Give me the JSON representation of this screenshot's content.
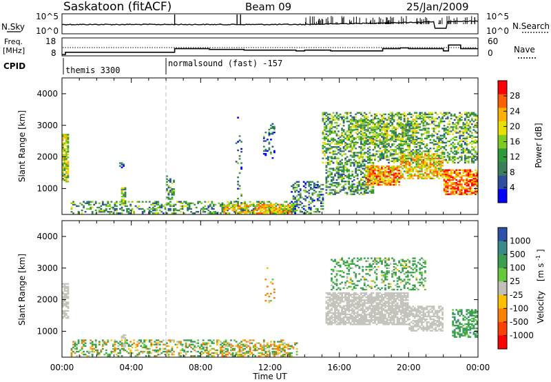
{
  "header": {
    "station": "Saskatoon (fitACF)",
    "beam": "Beam 09",
    "date": "25/Jan/2009"
  },
  "chart_data": [
    {
      "type": "line",
      "name": "noise-strip",
      "left_label": "N.Sky",
      "right_label": "N.Search",
      "left_ticks": [
        "10^5",
        "10^0"
      ],
      "right_ticks": [
        "10^5",
        "10^0"
      ],
      "y_scale": "log"
    },
    {
      "type": "line",
      "name": "frequency-strip",
      "left_label_top": "Freq.",
      "left_label_bottom": "[MHz]",
      "right_label": "Nave",
      "left_ticks": [
        "18",
        "8"
      ],
      "right_ticks": [
        "60",
        "0"
      ],
      "freq_steps_hours": [
        [
          0,
          0
        ],
        [
          0.2,
          9.5
        ],
        [
          6.5,
          12
        ],
        [
          8.5,
          11.5
        ],
        [
          10.5,
          11
        ],
        [
          13.5,
          10.5
        ],
        [
          14,
          11
        ],
        [
          15.5,
          10.5
        ],
        [
          18.5,
          12
        ],
        [
          19.5,
          12.5
        ],
        [
          20,
          12
        ],
        [
          22,
          10.5
        ],
        [
          22.3,
          14.5
        ],
        [
          23,
          12
        ],
        [
          24,
          12
        ]
      ]
    },
    {
      "type": "table",
      "name": "cpid-strip",
      "label": "CPID",
      "segments": [
        {
          "text": "themis 3300",
          "start_hour": 0
        },
        {
          "text": "normalsound (fast) -157",
          "start_hour": 6
        }
      ]
    },
    {
      "type": "heatmap",
      "name": "power-panel",
      "ylabel": "Slant Range [km]",
      "yticks": [
        "4000",
        "3000",
        "2000",
        "1000"
      ],
      "ylim": [
        180,
        4500
      ],
      "xlim_hours": [
        0,
        24
      ],
      "colorbar_label": "Power [dB]",
      "colorbar_ticks": [
        "28",
        "24",
        "20",
        "16",
        "12",
        "8",
        "4"
      ],
      "colorbar_colors": [
        "#ff0000",
        "#ff6000",
        "#ffb000",
        "#e8e000",
        "#7ecb20",
        "#2e9a3a",
        "#3c7e5a",
        "#2e4fa0",
        "#0000ff"
      ],
      "regions": [
        {
          "h0": 0.0,
          "h1": 0.4,
          "r0": 1200,
          "r1": 2700,
          "v": 16,
          "d": 0.8
        },
        {
          "h0": 3.4,
          "h1": 3.7,
          "r0": 500,
          "r1": 1000,
          "v": 14,
          "d": 0.7
        },
        {
          "h0": 3.3,
          "h1": 3.6,
          "r0": 1650,
          "r1": 1800,
          "v": 6,
          "d": 0.5
        },
        {
          "h0": 6.0,
          "h1": 6.4,
          "r0": 650,
          "r1": 1400,
          "v": 10,
          "d": 0.4
        },
        {
          "h0": 0.5,
          "h1": 13.5,
          "r0": 200,
          "r1": 600,
          "v": 10,
          "d": 0.35
        },
        {
          "h0": 9.3,
          "h1": 13.2,
          "r0": 200,
          "r1": 500,
          "v": 20,
          "d": 0.7
        },
        {
          "h0": 13.2,
          "h1": 15.0,
          "r0": 200,
          "r1": 1200,
          "v": 8,
          "d": 0.35
        },
        {
          "h0": 10.0,
          "h1": 10.3,
          "r0": 300,
          "r1": 3400,
          "v": 6,
          "d": 0.12
        },
        {
          "h0": 11.6,
          "h1": 12.2,
          "r0": 1900,
          "r1": 3100,
          "v": 6,
          "d": 0.2
        },
        {
          "h0": 15.0,
          "h1": 24.0,
          "r0": 1800,
          "r1": 3400,
          "v": 12,
          "d": 0.45
        },
        {
          "h0": 15.2,
          "h1": 18.0,
          "r0": 800,
          "r1": 1800,
          "v": 10,
          "d": 0.5
        },
        {
          "h0": 17.5,
          "h1": 19.5,
          "r0": 1100,
          "r1": 1700,
          "v": 24,
          "d": 0.75
        },
        {
          "h0": 19.5,
          "h1": 22.0,
          "r0": 1300,
          "r1": 2100,
          "v": 20,
          "d": 0.6
        },
        {
          "h0": 22.0,
          "h1": 24.0,
          "r0": 800,
          "r1": 1600,
          "v": 26,
          "d": 0.7
        },
        {
          "h0": 16.5,
          "h1": 20.5,
          "r0": 2400,
          "r1": 3200,
          "v": 14,
          "d": 0.35
        }
      ]
    },
    {
      "type": "heatmap",
      "name": "velocity-panel",
      "ylabel": "Slant Range [km]",
      "yticks": [
        "4000",
        "3000",
        "2000",
        "1000"
      ],
      "ylim": [
        180,
        4500
      ],
      "xlim_hours": [
        0,
        24
      ],
      "xticks": [
        "00:00",
        "04:00",
        "08:00",
        "12:00",
        "16:00",
        "20:00",
        "00:00"
      ],
      "xlabel": "Time UT",
      "colorbar_label_main": "Velocity",
      "colorbar_label_unit": "[m s",
      "colorbar_label_exp": "-1",
      "colorbar_ticks": [
        "1000",
        "500",
        "100",
        "25",
        "-25",
        "-100",
        "-500",
        "-1000"
      ],
      "colorbar_colors": [
        "#2a52a8",
        "#3a8a8a",
        "#3aa050",
        "#66c83c",
        "#c0c0b8",
        "#ffc000",
        "#ff8000",
        "#ff4000",
        "#ff0000"
      ],
      "ground_color": "#c4c4bc",
      "regions": [
        {
          "h0": 0.0,
          "h1": 0.4,
          "r0": 1400,
          "r1": 2500,
          "v": 0,
          "d": 0.7
        },
        {
          "h0": 3.4,
          "h1": 3.7,
          "r0": 500,
          "r1": 900,
          "v": 0,
          "d": 0.7
        },
        {
          "h0": 0.5,
          "h1": 13.5,
          "r0": 200,
          "r1": 700,
          "v": 60,
          "d": 0.35
        },
        {
          "h0": 9.0,
          "h1": 13.0,
          "r0": 200,
          "r1": 600,
          "v": -60,
          "d": 0.3
        },
        {
          "h0": 15.2,
          "h1": 20.0,
          "r0": 1200,
          "r1": 2200,
          "v": 0,
          "d": 0.75
        },
        {
          "h0": 20.0,
          "h1": 22.0,
          "r0": 1000,
          "r1": 1800,
          "v": 0,
          "d": 0.65
        },
        {
          "h0": 15.5,
          "h1": 21.0,
          "r0": 2300,
          "r1": 3300,
          "v": 200,
          "d": 0.3
        },
        {
          "h0": 22.5,
          "h1": 24.0,
          "r0": 800,
          "r1": 1700,
          "v": 300,
          "d": 0.55
        },
        {
          "h0": 11.7,
          "h1": 12.2,
          "r0": 1900,
          "r1": 3000,
          "v": -200,
          "d": 0.15
        }
      ]
    }
  ]
}
